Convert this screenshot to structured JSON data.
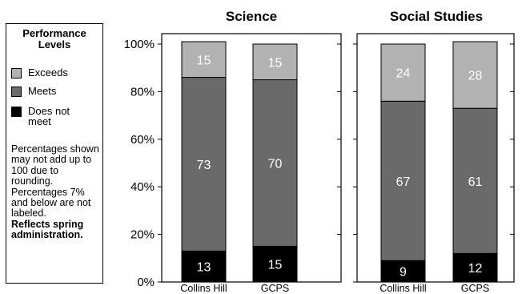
{
  "legend": {
    "title": "Performance Levels",
    "items": [
      {
        "label": "Exceeds",
        "color": "#b2b2b2"
      },
      {
        "label": "Meets",
        "color": "#6a6a6a"
      },
      {
        "label": "Does not meet",
        "color": "#000000"
      }
    ],
    "note": "Percentages shown may not add up to 100 due to rounding. Percentages 7% and below are not labeled.",
    "note_bold": "Reflects spring administration."
  },
  "chart_data": [
    {
      "type": "bar",
      "stacked": true,
      "title": "Science",
      "categories": [
        "Collins Hill",
        "GCPS"
      ],
      "series": [
        {
          "name": "Does not meet",
          "values": [
            13,
            15
          ],
          "color": "#000000",
          "label_color": "#ffffff"
        },
        {
          "name": "Meets",
          "values": [
            73,
            70
          ],
          "color": "#6a6a6a",
          "label_color": "#ffffff"
        },
        {
          "name": "Exceeds",
          "values": [
            15,
            15
          ],
          "color": "#b2b2b2",
          "label_color": "#ffffff"
        }
      ],
      "ylim": [
        0,
        100
      ],
      "yticks": [
        "0%",
        "20%",
        "40%",
        "60%",
        "80%",
        "100%"
      ],
      "grid": false
    },
    {
      "type": "bar",
      "stacked": true,
      "title": "Social Studies",
      "categories": [
        "Collins Hill",
        "GCPS"
      ],
      "series": [
        {
          "name": "Does not meet",
          "values": [
            9,
            12
          ],
          "color": "#000000",
          "label_color": "#ffffff"
        },
        {
          "name": "Meets",
          "values": [
            67,
            61
          ],
          "color": "#6a6a6a",
          "label_color": "#ffffff"
        },
        {
          "name": "Exceeds",
          "values": [
            24,
            28
          ],
          "color": "#b2b2b2",
          "label_color": "#ffffff"
        }
      ],
      "ylim": [
        0,
        100
      ],
      "grid": false
    }
  ]
}
